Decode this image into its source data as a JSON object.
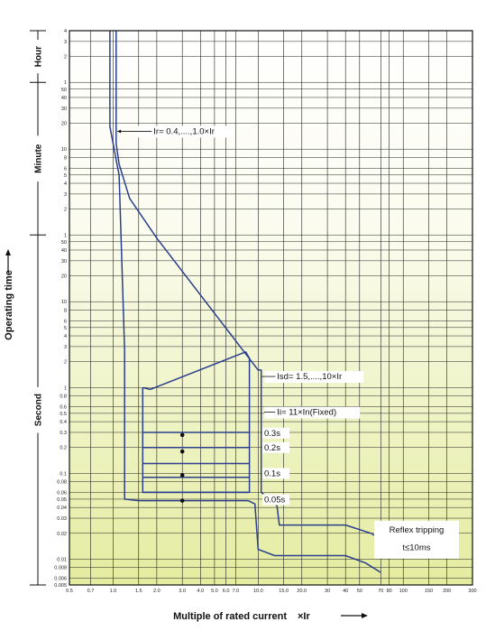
{
  "chart_data": {
    "type": "line",
    "title": "",
    "xlabel": "Multiple of rated current",
    "xlabel_unit": "×Ir",
    "ylabel": "Operating time",
    "xscale": "log",
    "yscale": "log",
    "xlim": [
      0.5,
      300
    ],
    "y_unit": "seconds",
    "ylim": [
      0.005,
      14400
    ],
    "grid": true,
    "x_ticks": [
      0.5,
      0.7,
      1.0,
      1.5,
      2.0,
      3.0,
      4.0,
      5.0,
      6.0,
      7.0,
      10.0,
      15.0,
      20.0,
      30,
      40,
      50,
      70,
      80,
      100,
      150,
      200,
      300
    ],
    "x_tick_labels": [
      "0.5",
      "0.7",
      "1.0",
      "1.5",
      "2.0",
      "3.0",
      "4.0",
      "5.0",
      "6.0",
      "7.0",
      "10.0",
      "15.0",
      "20.0",
      "30",
      "40",
      "50",
      "70",
      "80",
      "100",
      "150",
      "200",
      "300"
    ],
    "time_bands": [
      {
        "label": "Hour",
        "ticks": [
          "4",
          "3",
          "2",
          "1"
        ],
        "values_s": [
          14400,
          10800,
          7200,
          3600
        ]
      },
      {
        "label": "Minute",
        "ticks": [
          "50",
          "40",
          "30",
          "20",
          "10",
          "8",
          "6",
          "5",
          "4",
          "3",
          "2",
          "1"
        ],
        "values_s": [
          3000,
          2400,
          1800,
          1200,
          600,
          480,
          360,
          300,
          240,
          180,
          120,
          60
        ]
      },
      {
        "label": "Second",
        "ticks": [
          "50",
          "40",
          "30",
          "20",
          "10",
          "8",
          "6",
          "5",
          "4",
          "3",
          "2",
          "1",
          "0.8",
          "0.6",
          "0.5",
          "0.4",
          "0.3",
          "0.2",
          "0.1",
          "0.08",
          "0.06",
          "0.05",
          "0.04",
          "0.03",
          "0.02",
          "0.01",
          "0.008",
          "0.006",
          "0.005"
        ],
        "values_s": [
          50,
          40,
          30,
          20,
          10,
          8,
          6,
          5,
          4,
          3,
          2,
          1,
          0.8,
          0.6,
          0.5,
          0.4,
          0.3,
          0.2,
          0.1,
          0.08,
          0.06,
          0.05,
          0.04,
          0.03,
          0.02,
          0.01,
          0.008,
          0.006,
          0.005
        ]
      }
    ],
    "series": [
      {
        "points": [
          [
            1.05,
            14400
          ],
          [
            1.05,
            700
          ],
          [
            1.1,
            400
          ],
          [
            1.3,
            160
          ],
          [
            2.0,
            55
          ],
          [
            10.0,
            1.6
          ],
          [
            10.5,
            1.6
          ],
          [
            10.5,
            0.06
          ],
          [
            12.0,
            0.05
          ],
          [
            13.0,
            0.047
          ],
          [
            13.5,
            0.041
          ],
          [
            14.0,
            0.025
          ],
          [
            40,
            0.025
          ],
          [
            60,
            0.02
          ],
          [
            70,
            0.017
          ]
        ]
      },
      {
        "points": [
          [
            0.95,
            14400
          ],
          [
            0.95,
            1100
          ],
          [
            1.0,
            700
          ],
          [
            1.05,
            450
          ],
          [
            1.1,
            300
          ],
          [
            1.2,
            2.7
          ],
          [
            1.2,
            0.05
          ],
          [
            1.5,
            0.048
          ],
          [
            8.5,
            0.048
          ],
          [
            9.5,
            0.044
          ],
          [
            10.0,
            0.013
          ],
          [
            13.0,
            0.011
          ],
          [
            40,
            0.011
          ],
          [
            55,
            0.009
          ],
          [
            70,
            0.007
          ]
        ]
      },
      {
        "points": [
          [
            1.6,
            1
          ],
          [
            1.8,
            0.95
          ],
          [
            8.2,
            2.6
          ],
          [
            8.7,
            2.2
          ],
          [
            8.7,
            0.06
          ],
          [
            1.6,
            0.06
          ],
          [
            1.6,
            1
          ]
        ]
      },
      {
        "points": [
          [
            1.6,
            0.06
          ],
          [
            8.7,
            0.06
          ]
        ]
      },
      {
        "points": [
          [
            1.6,
            0.3
          ],
          [
            8.7,
            0.3
          ]
        ]
      },
      {
        "points": [
          [
            1.6,
            0.2
          ],
          [
            8.7,
            0.2
          ]
        ]
      },
      {
        "points": [
          [
            1.6,
            0.13
          ],
          [
            8.7,
            0.13
          ]
        ]
      },
      {
        "points": [
          [
            1.6,
            0.09
          ],
          [
            8.7,
            0.09
          ]
        ]
      }
    ],
    "markers": [
      [
        3.0,
        0.28
      ],
      [
        3.0,
        0.18
      ],
      [
        3.0,
        0.095
      ],
      [
        3.0,
        0.048
      ]
    ],
    "annotations": [
      {
        "text": "Ir= 0.4,....,1.0×Ir",
        "x": 1.9,
        "y": 900
      },
      {
        "text": "Isd= 1.5,....,10×Ir",
        "x": 13.5,
        "y": 1.25
      },
      {
        "text": "Ii= 11×In(Fixed)",
        "x": 13.5,
        "y": 0.48
      },
      {
        "text": "0.3s",
        "x": 11.0,
        "y": 0.28
      },
      {
        "text": "0.2s",
        "x": 11.0,
        "y": 0.19
      },
      {
        "text": "0.1s",
        "x": 11.0,
        "y": 0.095
      },
      {
        "text": "0.05s",
        "x": 11.0,
        "y": 0.047
      },
      {
        "text": "Reflex tripping",
        "x": 120,
        "y": 0.02
      },
      {
        "text": "t≤10ms",
        "x": 120,
        "y": 0.013
      }
    ]
  },
  "colors": {
    "curve": "#2b3f8c",
    "grid": "#222222",
    "bg_top": "#ffffff",
    "bg_bottom": "#e6eea5"
  }
}
